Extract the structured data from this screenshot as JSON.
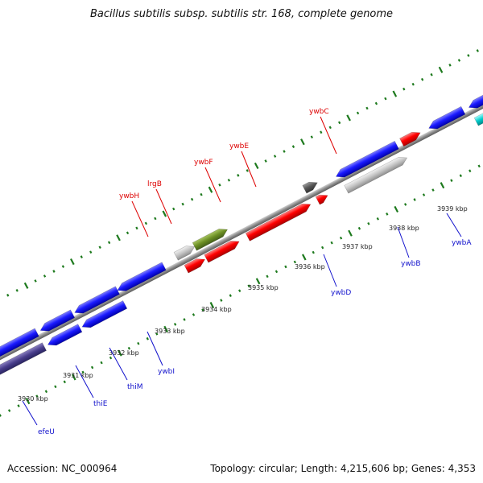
{
  "title": "Bacillus subtilis subsp. subtilis str. 168, complete genome",
  "footer": {
    "accession": "Accession: NC_000964",
    "summary": "Topology: circular; Length: 4,215,606 bp; Genes: 4,353"
  },
  "colors": {
    "backbone": "#8c8c8c",
    "scale_ticks": "#1e7a1e",
    "forward_label": "#dd0000",
    "reverse_label": "#1111cc"
  },
  "tick_labels": [
    "3930 kbp",
    "3931 kbp",
    "3932 kbp",
    "3933 kbp",
    "3934 kbp",
    "3935 kbp",
    "3936 kbp",
    "3937 kbp",
    "3938 kbp",
    "3939 kbp"
  ],
  "forward_gene_labels": [
    "ywbH",
    "lrgB",
    "ywbF",
    "ywbE",
    "ywbC"
  ],
  "reverse_gene_labels": [
    "efeU",
    "thiE",
    "thiM",
    "ywbI",
    "ywbD",
    "ywbB",
    "ywbA"
  ]
}
